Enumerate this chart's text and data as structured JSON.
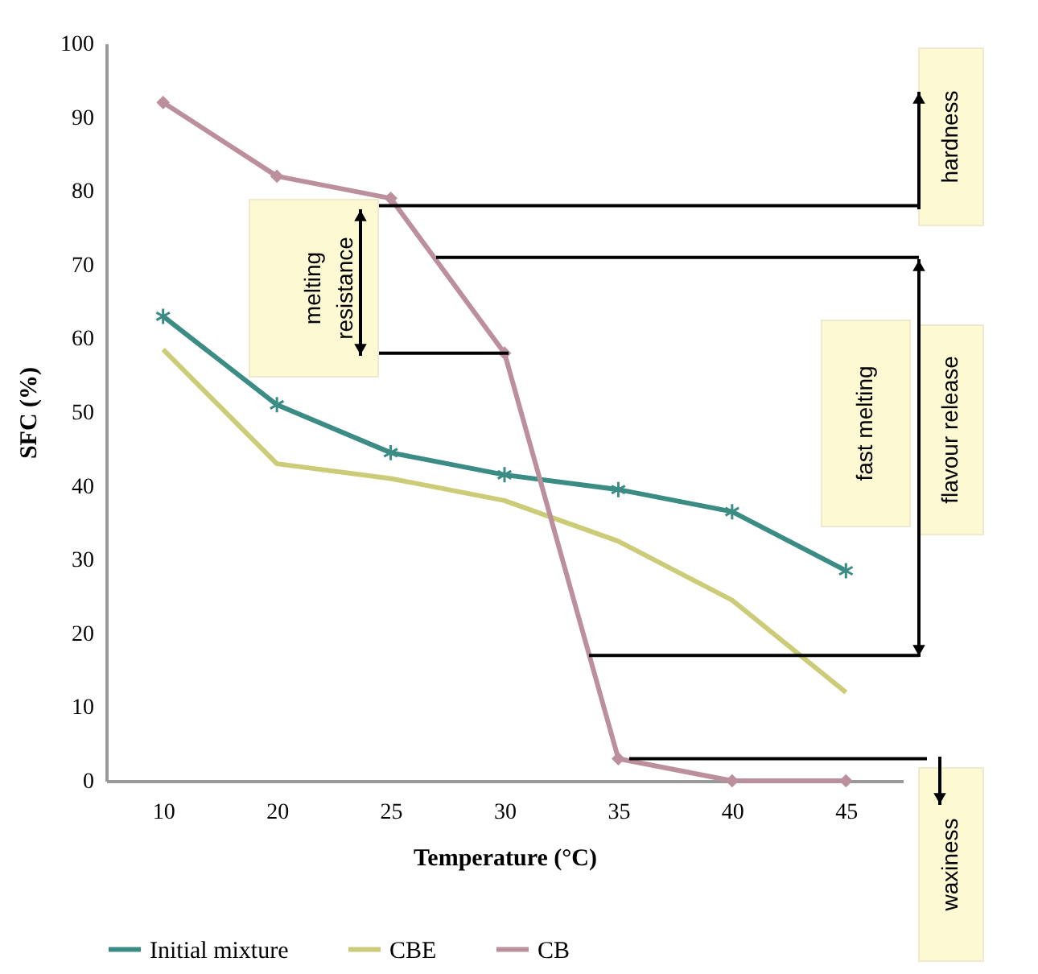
{
  "chart_data": {
    "type": "line",
    "xlabel": "Temperature (°C)",
    "ylabel": "SFC (%)",
    "categories": [
      "10",
      "20",
      "25",
      "30",
      "35",
      "40",
      "45"
    ],
    "series": [
      {
        "name": "Initial mixture",
        "color": "#3a8c84",
        "marker": "cross",
        "values": [
          63,
          51,
          44.5,
          41.5,
          39.5,
          36.5,
          28.5
        ]
      },
      {
        "name": "CBE",
        "color": "#cccc78",
        "marker": "none",
        "values": [
          58.5,
          43,
          41,
          38,
          32.5,
          24.5,
          12
        ]
      },
      {
        "name": "CB",
        "color": "#bb8f9c",
        "marker": "diamond",
        "values": [
          92,
          82,
          79,
          58,
          3,
          0,
          0
        ]
      }
    ],
    "ylim": [
      0,
      100
    ],
    "yticks": [
      0,
      10,
      20,
      30,
      40,
      50,
      60,
      70,
      80,
      90,
      100
    ],
    "grid": false,
    "legend": "bottom",
    "ref_lines": [
      {
        "axis": "y",
        "value": 78,
        "color": "#000000"
      },
      {
        "axis": "y",
        "value": 71,
        "color": "#000000"
      },
      {
        "axis": "y",
        "value": 58,
        "color": "#000000"
      },
      {
        "axis": "y",
        "value": 17,
        "color": "#000000"
      },
      {
        "axis": "y",
        "value": 3,
        "color": "#000000"
      }
    ],
    "annotations": [
      "hardness",
      "melting resistance",
      "fast melting",
      "flavour release",
      "waxiness"
    ]
  }
}
